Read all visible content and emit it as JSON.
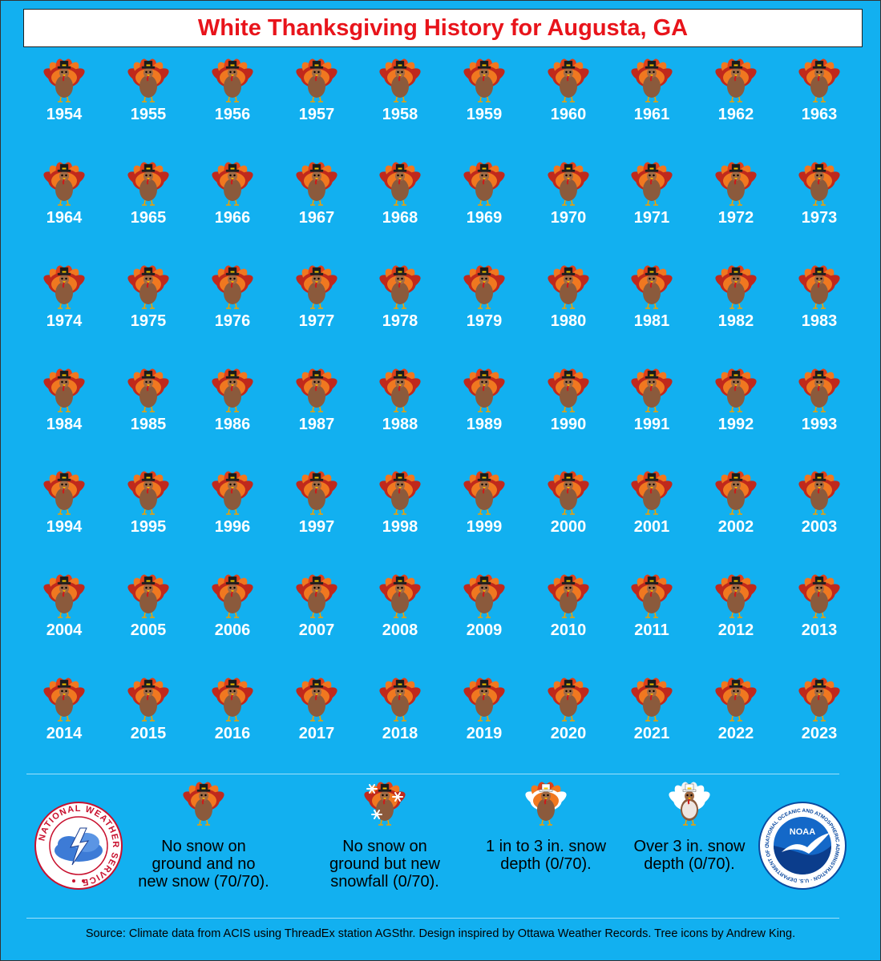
{
  "title": "White Thanksgiving History for Augusta, GA",
  "chart_data": {
    "type": "table",
    "title": "White Thanksgiving History for Augusta, GA",
    "years": [
      1954,
      1955,
      1956,
      1957,
      1958,
      1959,
      1960,
      1961,
      1962,
      1963,
      1964,
      1965,
      1966,
      1967,
      1968,
      1969,
      1970,
      1971,
      1972,
      1973,
      1974,
      1975,
      1976,
      1977,
      1978,
      1979,
      1980,
      1981,
      1982,
      1983,
      1984,
      1985,
      1986,
      1987,
      1988,
      1989,
      1990,
      1991,
      1992,
      1993,
      1994,
      1995,
      1996,
      1997,
      1998,
      1999,
      2000,
      2001,
      2002,
      2003,
      2004,
      2005,
      2006,
      2007,
      2008,
      2009,
      2010,
      2011,
      2012,
      2013,
      2014,
      2015,
      2016,
      2017,
      2018,
      2019,
      2020,
      2021,
      2022,
      2023
    ],
    "category": "no-snow",
    "categories": [
      "no-snow",
      "new-snowfall-only",
      "1-3-in-depth",
      "over-3-in-depth"
    ],
    "counts": [
      70,
      0,
      0,
      0
    ],
    "total": 70
  },
  "legend": [
    {
      "icon": "turkey-icon",
      "text": "No snow on ground and no new snow (70/70)."
    },
    {
      "icon": "turkey-snowflakes-icon",
      "text": "No snow on ground but new snowfall (0/70)."
    },
    {
      "icon": "snowy-turkey-icon",
      "text": "1 in to 3 in. snow depth (0/70)."
    },
    {
      "icon": "snow-covered-turkey-icon",
      "text": "Over 3 in. snow depth (0/70)."
    }
  ],
  "source": "Source: Climate data from ACIS using ThreadEx station AGSthr. Design inspired by Ottawa Weather Records. Tree icons by Andrew King.",
  "logos": {
    "nws": "NATIONAL WEATHER SERVICE",
    "noaa": "NOAA",
    "noaa_ring": "NATIONAL OCEANIC AND ATMOSPHERIC ADMINISTRATION · U.S. DEPARTMENT OF COMMERCE"
  },
  "colors": {
    "background": "#12b0f0",
    "title": "#e8141b",
    "turkey_body": "#8b5a3c",
    "feather_outer": "#c0291c",
    "feather_mid": "#f07820",
    "feather_inner": "#e04018"
  }
}
